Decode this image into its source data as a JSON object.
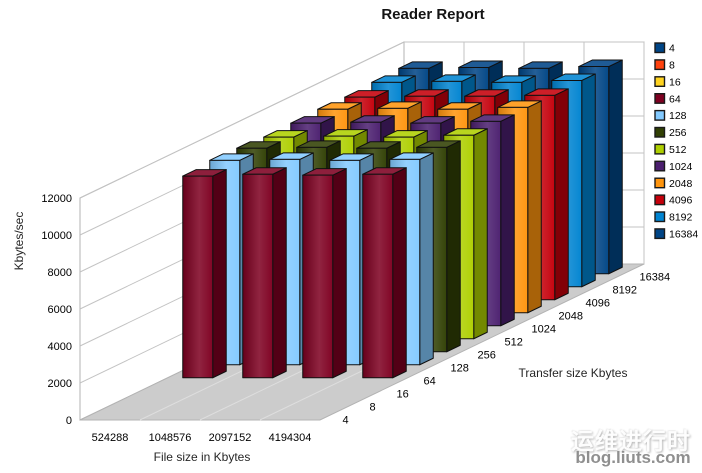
{
  "title": "Reader Report",
  "watermark": {
    "line1": "运维进行时",
    "line2": "blog.liuts.com"
  },
  "chart_data": {
    "type": "bar",
    "style": "3d-column",
    "title": "Reader Report",
    "xlabel": "File size in Kbytes",
    "ylabel": "Kbytes/sec",
    "zlabel": "Transfer size Kbytes",
    "categories": [
      "524288",
      "1048576",
      "2097152",
      "4194304"
    ],
    "series": [
      {
        "name": "4",
        "color": "#004586",
        "values": [
          0,
          0,
          0,
          0
        ]
      },
      {
        "name": "8",
        "color": "#FF420E",
        "values": [
          0,
          0,
          0,
          0
        ]
      },
      {
        "name": "16",
        "color": "#FFD320",
        "values": [
          0,
          0,
          0,
          0
        ]
      },
      {
        "name": "64",
        "color": "#7E0021",
        "values": [
          10900,
          11000,
          10950,
          11000
        ]
      },
      {
        "name": "128",
        "color": "#83CAFF",
        "values": [
          11050,
          11100,
          11050,
          11100
        ]
      },
      {
        "name": "256",
        "color": "#314004",
        "values": [
          11000,
          11050,
          11000,
          11050
        ]
      },
      {
        "name": "512",
        "color": "#AECF00",
        "values": [
          10900,
          10950,
          10900,
          11000
        ]
      },
      {
        "name": "1024",
        "color": "#4B1F6F",
        "values": [
          10950,
          11000,
          10950,
          11050
        ]
      },
      {
        "name": "2048",
        "color": "#FF950E",
        "values": [
          11000,
          11050,
          11000,
          11100
        ]
      },
      {
        "name": "4096",
        "color": "#C5000B",
        "values": [
          10950,
          11000,
          11000,
          11050
        ]
      },
      {
        "name": "8192",
        "color": "#0084D1",
        "values": [
          11050,
          11100,
          11050,
          11150
        ]
      },
      {
        "name": "16384",
        "color": "#004586",
        "values": [
          11100,
          11150,
          11100,
          11200
        ]
      }
    ],
    "y_ticks": [
      0,
      2000,
      4000,
      6000,
      8000,
      10000,
      12000
    ],
    "ylim": [
      0,
      12000
    ],
    "legend_position": "right",
    "grid": true,
    "colors": {
      "floor": "#cccccc",
      "wall": "#ffffff",
      "wall_border": "#b3b3b3",
      "grid_line": "#c3c3c3",
      "floor_line": "#dedede",
      "bar_outline": "#101010"
    }
  }
}
